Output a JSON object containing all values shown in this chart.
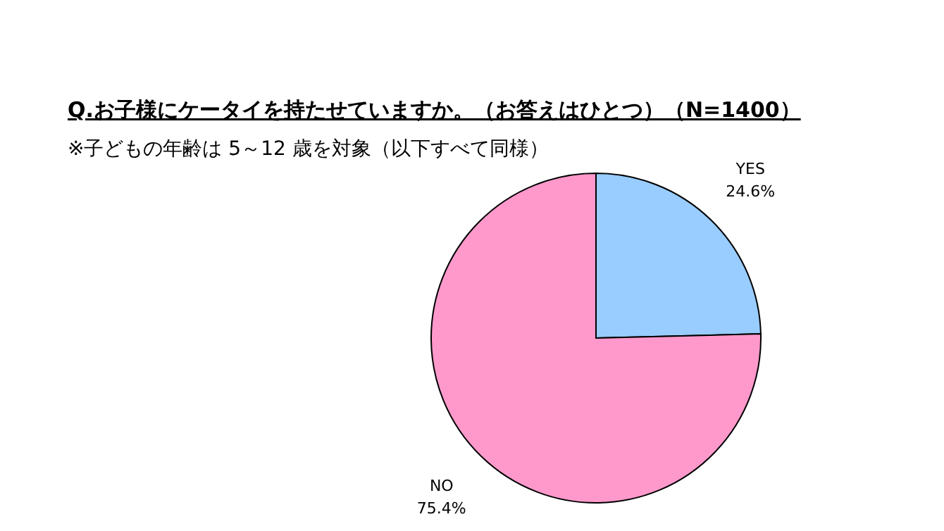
{
  "chart_data": {
    "type": "pie",
    "title": "Q.お子様にケータイを持たせていますか。（お答えはひとつ）（N=1400）",
    "subtitle": "※子どもの年齢は 5～12 歳を対象（以下すべて同様）",
    "categories": [
      "YES",
      "NO"
    ],
    "values": [
      24.6,
      75.4
    ],
    "colors": [
      "#99ccff",
      "#ff99cc"
    ],
    "value_labels": [
      "24.6%",
      "75.4%"
    ]
  }
}
